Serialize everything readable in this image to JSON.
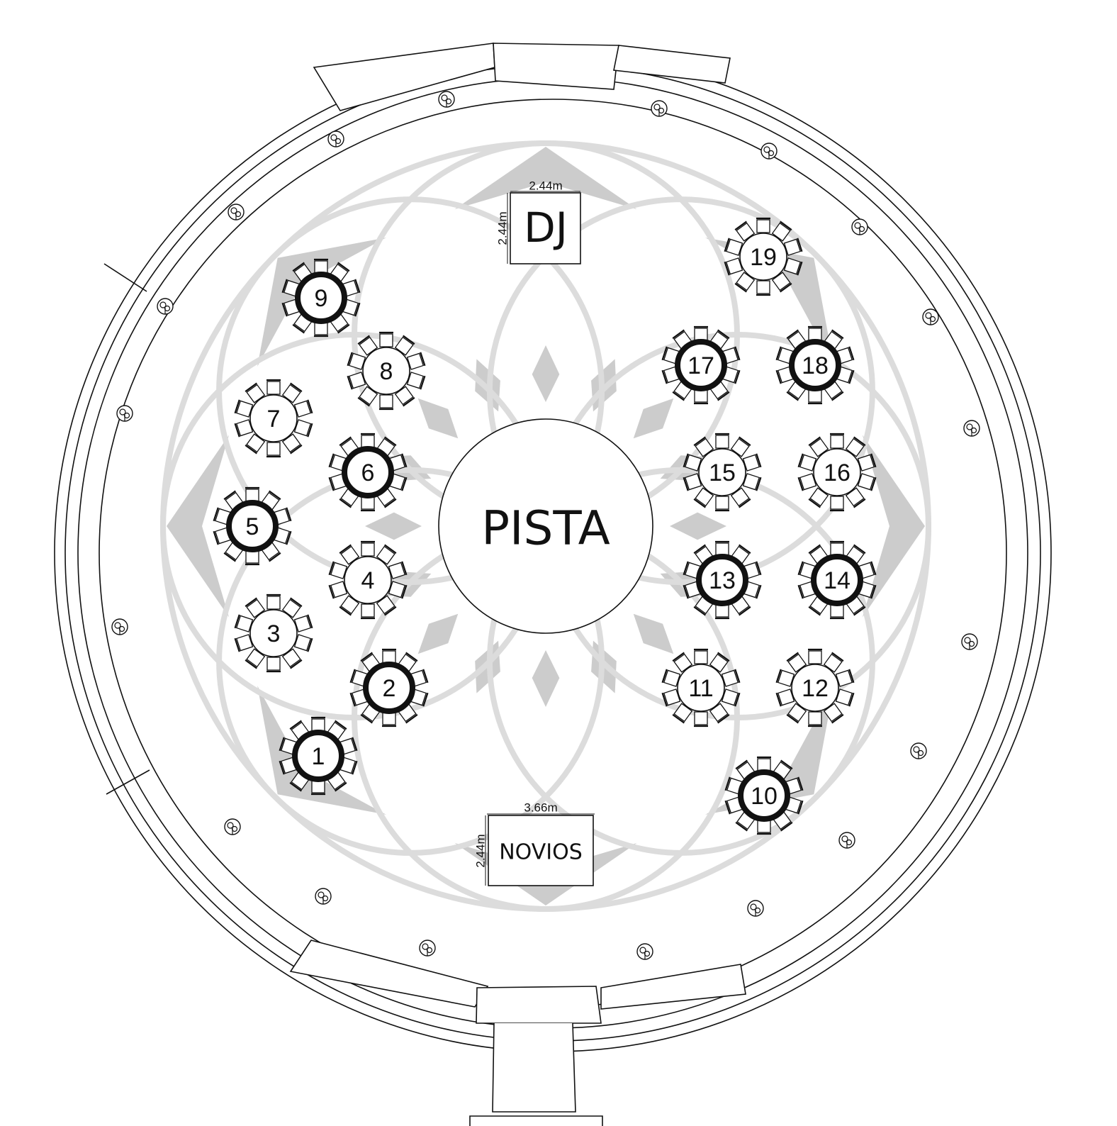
{
  "areas": {
    "dance_floor": "PISTA",
    "dj": {
      "label": "DJ",
      "width": "2.44m",
      "depth": "2.44m"
    },
    "head_table": {
      "label": "NOVIOS",
      "width": "3.66m",
      "depth": "2.44m"
    }
  },
  "tables": [
    {
      "num": "1",
      "bold": true
    },
    {
      "num": "2",
      "bold": true
    },
    {
      "num": "3",
      "bold": false
    },
    {
      "num": "4",
      "bold": false
    },
    {
      "num": "5",
      "bold": true
    },
    {
      "num": "6",
      "bold": true
    },
    {
      "num": "7",
      "bold": false
    },
    {
      "num": "8",
      "bold": false
    },
    {
      "num": "9",
      "bold": true
    },
    {
      "num": "10",
      "bold": true
    },
    {
      "num": "11",
      "bold": false
    },
    {
      "num": "12",
      "bold": false
    },
    {
      "num": "13",
      "bold": true
    },
    {
      "num": "14",
      "bold": true
    },
    {
      "num": "15",
      "bold": false
    },
    {
      "num": "16",
      "bold": false
    },
    {
      "num": "17",
      "bold": true
    },
    {
      "num": "18",
      "bold": true
    },
    {
      "num": "19",
      "bold": false
    }
  ],
  "colors": {
    "line": "#111111",
    "floor_pattern": "#dcdcdc",
    "floor_fill": "#cccccc"
  }
}
